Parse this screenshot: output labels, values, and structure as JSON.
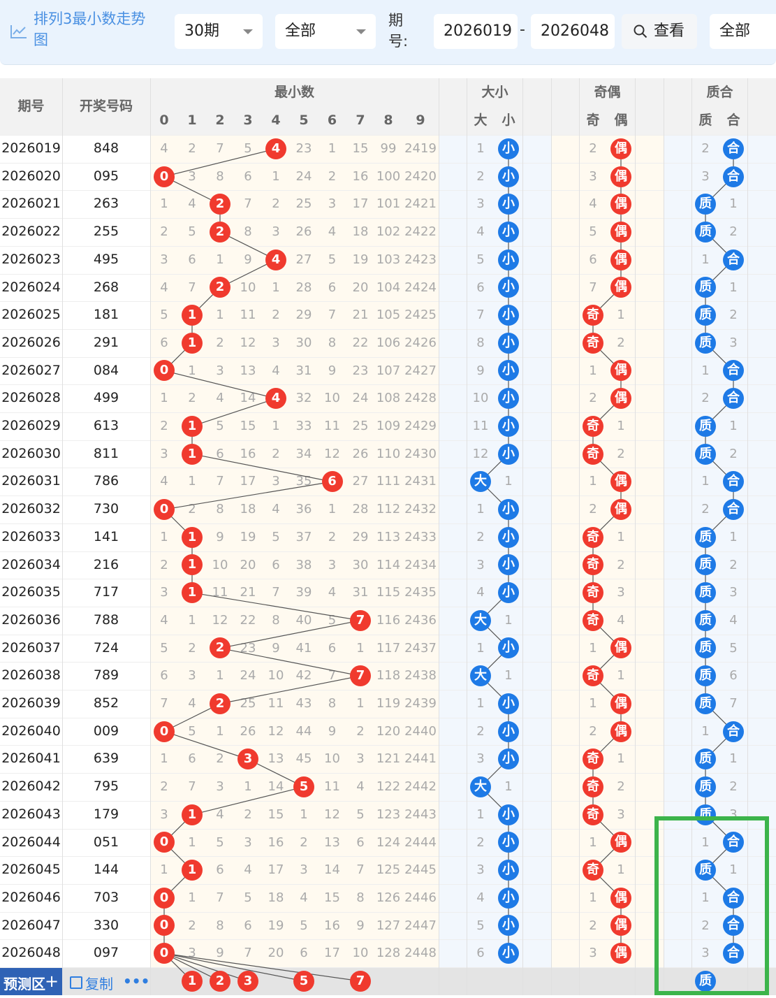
{
  "toolbar": {
    "title": "排列3最小数走势图",
    "period_select": "30期",
    "range_select": "全部",
    "issue_label": "期号:",
    "issue_from": "2026019",
    "issue_dash": "-",
    "issue_to": "2026048",
    "query_button": "查看",
    "filter_select": "全部"
  },
  "table": {
    "col_headers": {
      "issue": "期号",
      "draw": "开奖号码",
      "min_group": "最小数",
      "size_group": "大小",
      "parity_group": "奇偶",
      "prime_group": "质合"
    },
    "digit_labels": [
      "0",
      "1",
      "2",
      "3",
      "4",
      "5",
      "6",
      "7",
      "8",
      "9"
    ],
    "size_labels": [
      "大",
      "小"
    ],
    "parity_labels": [
      "奇",
      "偶"
    ],
    "prime_labels": [
      "质",
      "合"
    ],
    "rows": [
      {
        "issue": "2026019",
        "draw": "848",
        "digits": [
          "4",
          "2",
          "7",
          "5",
          "4",
          "23",
          "1",
          "15",
          "99",
          "2419"
        ],
        "min": 4,
        "size": [
          "1",
          "小"
        ],
        "size_hit": 1,
        "parity": [
          "2",
          "偶"
        ],
        "parity_hit": 1,
        "prime": [
          "2",
          "合"
        ],
        "prime_hit": 1
      },
      {
        "issue": "2026020",
        "draw": "095",
        "digits": [
          "0",
          "3",
          "8",
          "6",
          "1",
          "24",
          "2",
          "16",
          "100",
          "2420"
        ],
        "min": 0,
        "size": [
          "2",
          "小"
        ],
        "size_hit": 1,
        "parity": [
          "3",
          "偶"
        ],
        "parity_hit": 1,
        "prime": [
          "3",
          "合"
        ],
        "prime_hit": 1
      },
      {
        "issue": "2026021",
        "draw": "263",
        "digits": [
          "1",
          "4",
          "2",
          "7",
          "2",
          "25",
          "3",
          "17",
          "101",
          "2421"
        ],
        "min": 2,
        "size": [
          "3",
          "小"
        ],
        "size_hit": 1,
        "parity": [
          "4",
          "偶"
        ],
        "parity_hit": 1,
        "prime": [
          "质",
          "1"
        ],
        "prime_hit": 0
      },
      {
        "issue": "2026022",
        "draw": "255",
        "digits": [
          "2",
          "5",
          "2",
          "8",
          "3",
          "26",
          "4",
          "18",
          "102",
          "2422"
        ],
        "min": 2,
        "size": [
          "4",
          "小"
        ],
        "size_hit": 1,
        "parity": [
          "5",
          "偶"
        ],
        "parity_hit": 1,
        "prime": [
          "质",
          "2"
        ],
        "prime_hit": 0
      },
      {
        "issue": "2026023",
        "draw": "495",
        "digits": [
          "3",
          "6",
          "1",
          "9",
          "4",
          "27",
          "5",
          "19",
          "103",
          "2423"
        ],
        "min": 4,
        "size": [
          "5",
          "小"
        ],
        "size_hit": 1,
        "parity": [
          "6",
          "偶"
        ],
        "parity_hit": 1,
        "prime": [
          "1",
          "合"
        ],
        "prime_hit": 1
      },
      {
        "issue": "2026024",
        "draw": "268",
        "digits": [
          "4",
          "7",
          "2",
          "10",
          "1",
          "28",
          "6",
          "20",
          "104",
          "2424"
        ],
        "min": 2,
        "size": [
          "6",
          "小"
        ],
        "size_hit": 1,
        "parity": [
          "7",
          "偶"
        ],
        "parity_hit": 1,
        "prime": [
          "质",
          "1"
        ],
        "prime_hit": 0
      },
      {
        "issue": "2026025",
        "draw": "181",
        "digits": [
          "5",
          "1",
          "1",
          "11",
          "2",
          "29",
          "7",
          "21",
          "105",
          "2425"
        ],
        "min": 1,
        "size": [
          "7",
          "小"
        ],
        "size_hit": 1,
        "parity": [
          "奇",
          "1"
        ],
        "parity_hit": 0,
        "prime": [
          "质",
          "2"
        ],
        "prime_hit": 0
      },
      {
        "issue": "2026026",
        "draw": "291",
        "digits": [
          "6",
          "1",
          "2",
          "12",
          "3",
          "30",
          "8",
          "22",
          "106",
          "2426"
        ],
        "min": 1,
        "size": [
          "8",
          "小"
        ],
        "size_hit": 1,
        "parity": [
          "奇",
          "2"
        ],
        "parity_hit": 0,
        "prime": [
          "质",
          "3"
        ],
        "prime_hit": 0
      },
      {
        "issue": "2026027",
        "draw": "084",
        "digits": [
          "0",
          "1",
          "3",
          "13",
          "4",
          "31",
          "9",
          "23",
          "107",
          "2427"
        ],
        "min": 0,
        "size": [
          "9",
          "小"
        ],
        "size_hit": 1,
        "parity": [
          "1",
          "偶"
        ],
        "parity_hit": 1,
        "prime": [
          "1",
          "合"
        ],
        "prime_hit": 1
      },
      {
        "issue": "2026028",
        "draw": "499",
        "digits": [
          "1",
          "2",
          "4",
          "14",
          "4",
          "32",
          "10",
          "24",
          "108",
          "2428"
        ],
        "min": 4,
        "size": [
          "10",
          "小"
        ],
        "size_hit": 1,
        "parity": [
          "2",
          "偶"
        ],
        "parity_hit": 1,
        "prime": [
          "2",
          "合"
        ],
        "prime_hit": 1
      },
      {
        "issue": "2026029",
        "draw": "613",
        "digits": [
          "2",
          "1",
          "5",
          "15",
          "1",
          "33",
          "11",
          "25",
          "109",
          "2429"
        ],
        "min": 1,
        "size": [
          "11",
          "小"
        ],
        "size_hit": 1,
        "parity": [
          "奇",
          "1"
        ],
        "parity_hit": 0,
        "prime": [
          "质",
          "1"
        ],
        "prime_hit": 0
      },
      {
        "issue": "2026030",
        "draw": "811",
        "digits": [
          "3",
          "1",
          "6",
          "16",
          "2",
          "34",
          "12",
          "26",
          "110",
          "2430"
        ],
        "min": 1,
        "size": [
          "12",
          "小"
        ],
        "size_hit": 1,
        "parity": [
          "奇",
          "2"
        ],
        "parity_hit": 0,
        "prime": [
          "质",
          "2"
        ],
        "prime_hit": 0
      },
      {
        "issue": "2026031",
        "draw": "786",
        "digits": [
          "4",
          "1",
          "7",
          "17",
          "3",
          "35",
          "6",
          "27",
          "111",
          "2431"
        ],
        "min": 6,
        "size": [
          "大",
          "1"
        ],
        "size_hit": 0,
        "parity": [
          "1",
          "偶"
        ],
        "parity_hit": 1,
        "prime": [
          "1",
          "合"
        ],
        "prime_hit": 1
      },
      {
        "issue": "2026032",
        "draw": "730",
        "digits": [
          "0",
          "2",
          "8",
          "18",
          "4",
          "36",
          "1",
          "28",
          "112",
          "2432"
        ],
        "min": 0,
        "size": [
          "1",
          "小"
        ],
        "size_hit": 1,
        "parity": [
          "2",
          "偶"
        ],
        "parity_hit": 1,
        "prime": [
          "2",
          "合"
        ],
        "prime_hit": 1
      },
      {
        "issue": "2026033",
        "draw": "141",
        "digits": [
          "1",
          "1",
          "9",
          "19",
          "5",
          "37",
          "2",
          "29",
          "113",
          "2433"
        ],
        "min": 1,
        "size": [
          "2",
          "小"
        ],
        "size_hit": 1,
        "parity": [
          "奇",
          "1"
        ],
        "parity_hit": 0,
        "prime": [
          "质",
          "1"
        ],
        "prime_hit": 0
      },
      {
        "issue": "2026034",
        "draw": "216",
        "digits": [
          "2",
          "1",
          "10",
          "20",
          "6",
          "38",
          "3",
          "30",
          "114",
          "2434"
        ],
        "min": 1,
        "size": [
          "3",
          "小"
        ],
        "size_hit": 1,
        "parity": [
          "奇",
          "2"
        ],
        "parity_hit": 0,
        "prime": [
          "质",
          "2"
        ],
        "prime_hit": 0
      },
      {
        "issue": "2026035",
        "draw": "717",
        "digits": [
          "3",
          "1",
          "11",
          "21",
          "7",
          "39",
          "4",
          "31",
          "115",
          "2435"
        ],
        "min": 1,
        "size": [
          "4",
          "小"
        ],
        "size_hit": 1,
        "parity": [
          "奇",
          "3"
        ],
        "parity_hit": 0,
        "prime": [
          "质",
          "3"
        ],
        "prime_hit": 0
      },
      {
        "issue": "2026036",
        "draw": "788",
        "digits": [
          "4",
          "1",
          "12",
          "22",
          "8",
          "40",
          "5",
          "7",
          "116",
          "2436"
        ],
        "min": 7,
        "size": [
          "大",
          "1"
        ],
        "size_hit": 0,
        "parity": [
          "奇",
          "4"
        ],
        "parity_hit": 0,
        "prime": [
          "质",
          "4"
        ],
        "prime_hit": 0
      },
      {
        "issue": "2026037",
        "draw": "724",
        "digits": [
          "5",
          "2",
          "2",
          "23",
          "9",
          "41",
          "6",
          "1",
          "117",
          "2437"
        ],
        "min": 2,
        "size": [
          "1",
          "小"
        ],
        "size_hit": 1,
        "parity": [
          "1",
          "偶"
        ],
        "parity_hit": 1,
        "prime": [
          "质",
          "5"
        ],
        "prime_hit": 0
      },
      {
        "issue": "2026038",
        "draw": "789",
        "digits": [
          "6",
          "3",
          "1",
          "24",
          "10",
          "42",
          "7",
          "7",
          "118",
          "2438"
        ],
        "min": 7,
        "size": [
          "大",
          "1"
        ],
        "size_hit": 0,
        "parity": [
          "奇",
          "1"
        ],
        "parity_hit": 0,
        "prime": [
          "质",
          "6"
        ],
        "prime_hit": 0
      },
      {
        "issue": "2026039",
        "draw": "852",
        "digits": [
          "7",
          "4",
          "2",
          "25",
          "11",
          "43",
          "8",
          "1",
          "119",
          "2439"
        ],
        "min": 2,
        "size": [
          "1",
          "小"
        ],
        "size_hit": 1,
        "parity": [
          "1",
          "偶"
        ],
        "parity_hit": 1,
        "prime": [
          "质",
          "7"
        ],
        "prime_hit": 0
      },
      {
        "issue": "2026040",
        "draw": "009",
        "digits": [
          "0",
          "5",
          "1",
          "26",
          "12",
          "44",
          "9",
          "2",
          "120",
          "2440"
        ],
        "min": 0,
        "size": [
          "2",
          "小"
        ],
        "size_hit": 1,
        "parity": [
          "2",
          "偶"
        ],
        "parity_hit": 1,
        "prime": [
          "1",
          "合"
        ],
        "prime_hit": 1
      },
      {
        "issue": "2026041",
        "draw": "639",
        "digits": [
          "1",
          "6",
          "2",
          "3",
          "13",
          "45",
          "10",
          "3",
          "121",
          "2441"
        ],
        "min": 3,
        "size": [
          "3",
          "小"
        ],
        "size_hit": 1,
        "parity": [
          "奇",
          "1"
        ],
        "parity_hit": 0,
        "prime": [
          "质",
          "1"
        ],
        "prime_hit": 0
      },
      {
        "issue": "2026042",
        "draw": "795",
        "digits": [
          "2",
          "7",
          "3",
          "1",
          "14",
          "5",
          "11",
          "4",
          "122",
          "2442"
        ],
        "min": 5,
        "size": [
          "大",
          "1"
        ],
        "size_hit": 0,
        "parity": [
          "奇",
          "2"
        ],
        "parity_hit": 0,
        "prime": [
          "质",
          "2"
        ],
        "prime_hit": 0
      },
      {
        "issue": "2026043",
        "draw": "179",
        "digits": [
          "3",
          "1",
          "4",
          "2",
          "15",
          "1",
          "12",
          "5",
          "123",
          "2443"
        ],
        "min": 1,
        "size": [
          "1",
          "小"
        ],
        "size_hit": 1,
        "parity": [
          "奇",
          "3"
        ],
        "parity_hit": 0,
        "prime": [
          "质",
          "3"
        ],
        "prime_hit": 0
      },
      {
        "issue": "2026044",
        "draw": "051",
        "digits": [
          "0",
          "1",
          "5",
          "3",
          "16",
          "2",
          "13",
          "6",
          "124",
          "2444"
        ],
        "min": 0,
        "size": [
          "2",
          "小"
        ],
        "size_hit": 1,
        "parity": [
          "1",
          "偶"
        ],
        "parity_hit": 1,
        "prime": [
          "1",
          "合"
        ],
        "prime_hit": 1
      },
      {
        "issue": "2026045",
        "draw": "144",
        "digits": [
          "1",
          "1",
          "6",
          "4",
          "17",
          "3",
          "14",
          "7",
          "125",
          "2445"
        ],
        "min": 1,
        "size": [
          "3",
          "小"
        ],
        "size_hit": 1,
        "parity": [
          "奇",
          "1"
        ],
        "parity_hit": 0,
        "prime": [
          "质",
          "1"
        ],
        "prime_hit": 0
      },
      {
        "issue": "2026046",
        "draw": "703",
        "digits": [
          "0",
          "1",
          "7",
          "5",
          "18",
          "4",
          "15",
          "8",
          "126",
          "2446"
        ],
        "min": 0,
        "size": [
          "4",
          "小"
        ],
        "size_hit": 1,
        "parity": [
          "1",
          "偶"
        ],
        "parity_hit": 1,
        "prime": [
          "1",
          "合"
        ],
        "prime_hit": 1
      },
      {
        "issue": "2026047",
        "draw": "330",
        "digits": [
          "0",
          "2",
          "8",
          "6",
          "19",
          "5",
          "16",
          "9",
          "127",
          "2447"
        ],
        "min": 0,
        "size": [
          "5",
          "小"
        ],
        "size_hit": 1,
        "parity": [
          "2",
          "偶"
        ],
        "parity_hit": 1,
        "prime": [
          "2",
          "合"
        ],
        "prime_hit": 1
      },
      {
        "issue": "2026048",
        "draw": "097",
        "digits": [
          "0",
          "3",
          "9",
          "7",
          "20",
          "6",
          "17",
          "10",
          "128",
          "2448"
        ],
        "min": 0,
        "size": [
          "6",
          "小"
        ],
        "size_hit": 1,
        "parity": [
          "3",
          "偶"
        ],
        "parity_hit": 1,
        "prime": [
          "3",
          "合"
        ],
        "prime_hit": 1
      }
    ],
    "prediction": {
      "label": "预测区",
      "copy_label": "复制",
      "more_label": "•••",
      "digits": [
        "1",
        "2",
        "3",
        "5",
        "7"
      ],
      "prime_pick": "质"
    }
  },
  "colors": {
    "red_ball": "#f03a2e",
    "blue_ball": "#1e7ae6",
    "highlight": "#3cb44b",
    "header_bg": "#f2f2f2",
    "warm_bg": "#fffaf0",
    "cool_bg": "#f2f7fd"
  },
  "icons": {
    "title_icon": "line-chart-icon",
    "query_icon": "search-icon",
    "dropdown_icon": "caret-down-icon",
    "add_icon": "plus-icon",
    "copy_icon": "copy-icon"
  }
}
